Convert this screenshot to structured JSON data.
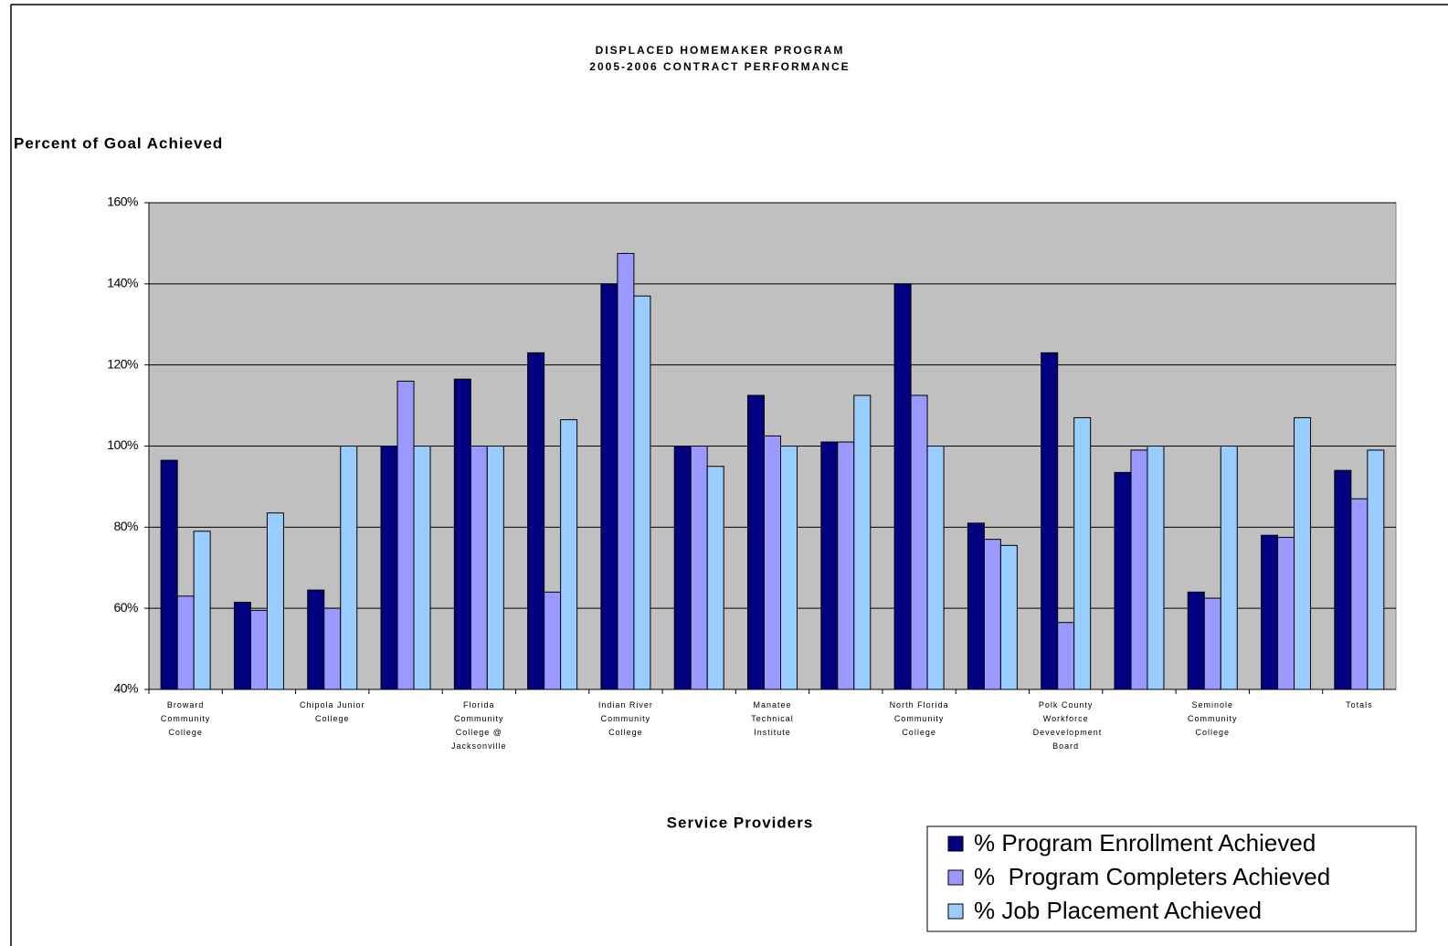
{
  "chart_data": {
    "type": "bar",
    "title": "DISPLACED HOMEMAKER PROGRAM",
    "subtitle": "2005-2006 CONTRACT PERFORMANCE",
    "y_axis_label": "Percent of Goal Achieved",
    "x_axis_label": "Service Providers",
    "categories": [
      "Broward Community College",
      null,
      "Chipola Junior College",
      null,
      "Florida Community College @ Jacksonville",
      null,
      "Indian River Community College",
      null,
      "Manatee Technical Institute",
      null,
      "North Florida Community College",
      null,
      "Polk County Workforce Devevelopment Board",
      null,
      "Seminole Community College",
      null,
      "Totals"
    ],
    "series": [
      {
        "name": "% Program Enrollment Achieved",
        "color": "#000080",
        "values": [
          96.5,
          61.5,
          64.5,
          100,
          116.5,
          123,
          140,
          100,
          112.5,
          101,
          140,
          81,
          123,
          93.5,
          64,
          78,
          94
        ]
      },
      {
        "name": "%  Program Completers Achieved",
        "color": "#9999ff",
        "values": [
          63,
          59.5,
          60,
          116,
          100,
          64,
          147.5,
          100,
          102.5,
          101,
          112.5,
          77,
          56.5,
          99,
          62.5,
          77.5,
          87
        ]
      },
      {
        "name": "% Job Placement Achieved",
        "color": "#99ccff",
        "values": [
          79,
          83.5,
          100,
          100,
          100,
          106.5,
          137,
          95,
          100,
          112.5,
          100,
          75.5,
          107,
          100,
          100,
          107,
          99
        ]
      }
    ],
    "ylim": [
      40,
      160
    ],
    "yticks": [
      {
        "value": 40,
        "label": "40%"
      },
      {
        "value": 60,
        "label": "60%"
      },
      {
        "value": 80,
        "label": "80%"
      },
      {
        "value": 100,
        "label": "100%"
      },
      {
        "value": 120,
        "label": "120%"
      },
      {
        "value": 140,
        "label": "140%"
      },
      {
        "value": 160,
        "label": "160%"
      }
    ],
    "grid": true,
    "plot_background": "#c0c0c0",
    "legend_position": "bottom-right"
  }
}
